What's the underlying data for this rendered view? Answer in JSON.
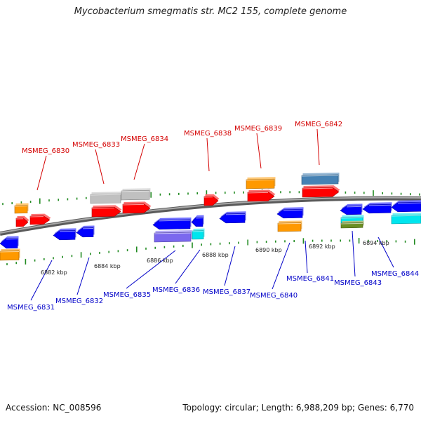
{
  "title": "Mycobacterium smegmatis str. MC2 155, complete genome",
  "footer": {
    "accession": "Accession: NC_008596",
    "topology": "Topology: circular; Length: 6,988,209 bp; Genes: 6,770"
  },
  "colors": {
    "forward_label": "#d40000",
    "reverse_label": "#0000c8",
    "tick": "#228b22",
    "backbone": "#808080",
    "red": "#ff0000",
    "blue": "#0000ff",
    "orange": "#ff9900",
    "gray": "#c0c0c0",
    "steelblue": "#4682b4",
    "cyan": "#00e5ee",
    "purple": "#7b68ee",
    "olive": "#6b8e23"
  },
  "scale_labels": [
    "6882 kbp",
    "6884 kbp",
    "6886 kbp",
    "6888 kbp",
    "6890 kbp",
    "6892 kbp",
    "6894 kbp"
  ],
  "forward_labels": [
    "MSMEG_6830",
    "MSMEG_6833",
    "MSMEG_6834",
    "MSMEG_6838",
    "MSMEG_6839",
    "MSMEG_6842"
  ],
  "reverse_labels": [
    "MSMEG_6831",
    "MSMEG_6832",
    "MSMEG_6835",
    "MSMEG_6836",
    "MSMEG_6837",
    "MSMEG_6840",
    "MSMEG_6841",
    "MSMEG_6843",
    "MSMEG_6844"
  ]
}
